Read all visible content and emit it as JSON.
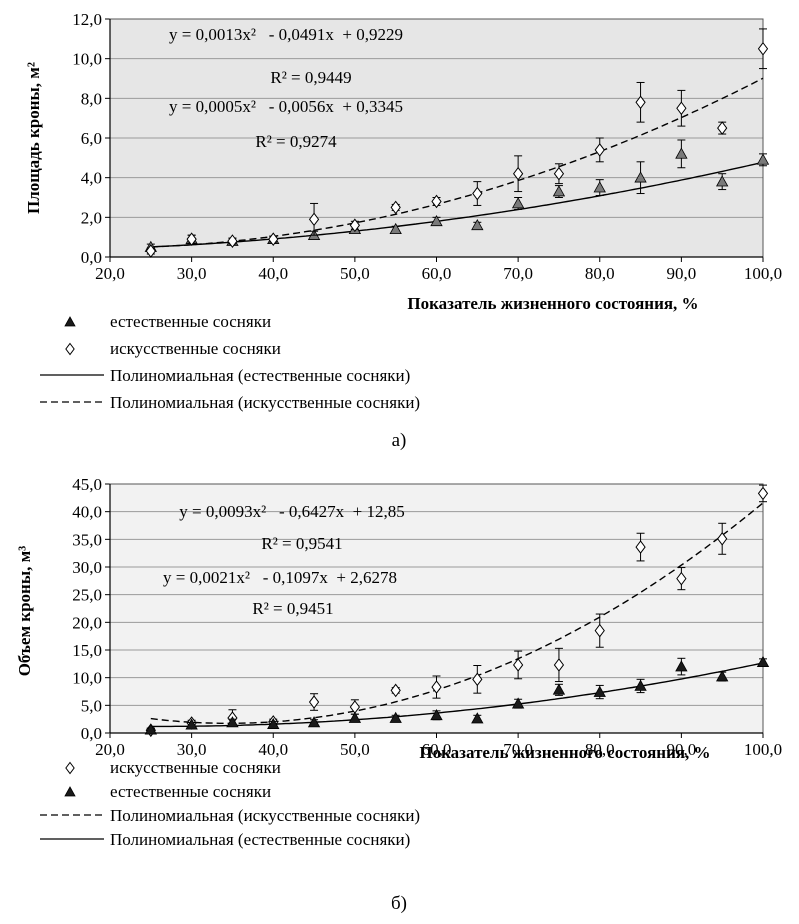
{
  "chart_data": [
    {
      "type": "scatter",
      "panel_label": "а)",
      "xlabel": "Показатель  жизненного  состояния,  %",
      "ylabel": "Площадь  кроны,  м²",
      "xlim": [
        20,
        100
      ],
      "ylim": [
        0,
        12
      ],
      "x_ticks": [
        "20,0",
        "30,0",
        "40,0",
        "50,0",
        "60,0",
        "70,0",
        "80,0",
        "90,0",
        "100,0"
      ],
      "y_ticks": [
        "0,0",
        "2,0",
        "4,0",
        "6,0",
        "8,0",
        "10,0",
        "12,0"
      ],
      "x_tick_values": [
        20,
        30,
        40,
        50,
        60,
        70,
        80,
        90,
        100
      ],
      "y_tick_values": [
        0,
        2,
        4,
        6,
        8,
        10,
        12
      ],
      "grid": "horizontal",
      "background": "#e6e6e6",
      "series": [
        {
          "name": "естественные сосняки",
          "marker": "triangle",
          "fill": "#7a7a7a",
          "x": [
            25,
            30,
            35,
            40,
            45,
            50,
            55,
            60,
            65,
            70,
            75,
            80,
            85,
            90,
            95,
            100
          ],
          "y": [
            0.5,
            0.9,
            0.8,
            0.9,
            1.1,
            1.4,
            1.4,
            1.8,
            1.6,
            2.7,
            3.3,
            3.5,
            4.0,
            5.2,
            3.8,
            4.9
          ],
          "err": [
            0.15,
            0.2,
            0.15,
            0.15,
            0.2,
            0.15,
            0.15,
            0.2,
            0.15,
            0.3,
            0.3,
            0.4,
            0.8,
            0.7,
            0.4,
            0.3
          ]
        },
        {
          "name": "искусственные сосняки",
          "marker": "diamond",
          "fill": "#ffffff",
          "x": [
            25,
            30,
            35,
            40,
            45,
            50,
            55,
            60,
            65,
            70,
            75,
            80,
            85,
            90,
            95,
            100
          ],
          "y": [
            0.3,
            0.9,
            0.8,
            0.9,
            1.9,
            1.6,
            2.5,
            2.8,
            3.2,
            4.2,
            4.2,
            5.4,
            7.8,
            7.5,
            6.5,
            10.5
          ],
          "err": [
            0.15,
            0.2,
            0.15,
            0.15,
            0.8,
            0.2,
            0.15,
            0.2,
            0.6,
            0.9,
            0.5,
            0.6,
            1.0,
            0.9,
            0.3,
            1.0
          ]
        }
      ],
      "trendlines": [
        {
          "name": "Полиномиальная (естественные сосняки)",
          "style": "solid",
          "coeffs": [
            0.0005,
            -0.0056,
            0.3345
          ],
          "equation": "y = 0,0005x²   - 0,0056x  + 0,3345",
          "r2": "R² = 0,9274"
        },
        {
          "name": "Полиномиальная (искусственные сосняки)",
          "style": "dashed",
          "coeffs": [
            0.0013,
            -0.0491,
            0.9229
          ],
          "equation": "y = 0,0013x²   - 0,0491x  + 0,9229",
          "r2": "R² = 0,9449"
        }
      ],
      "legend": [
        {
          "symbol": "triangle",
          "label": "естественные сосняки"
        },
        {
          "symbol": "diamond",
          "label": "искусственные сосняки"
        },
        {
          "symbol": "solid",
          "label": "Полиномиальная (естественные сосняки)"
        },
        {
          "symbol": "dashed",
          "label": "Полиномиальная (искусственные сосняки)"
        }
      ]
    },
    {
      "type": "scatter",
      "panel_label": "б)",
      "xlabel": "Показатель  жизненного  состояния,  %",
      "ylabel": "Объем кроны,  м³",
      "xlim": [
        20,
        100
      ],
      "ylim": [
        0,
        45
      ],
      "x_ticks": [
        "20,0",
        "30,0",
        "40,0",
        "50,0",
        "60,0",
        "70,0",
        "80,0",
        "90,0",
        "100,0"
      ],
      "y_ticks": [
        "0,0",
        "5,0",
        "10,0",
        "15,0",
        "20,0",
        "25,0",
        "30,0",
        "35,0",
        "40,0",
        "45,0"
      ],
      "x_tick_values": [
        20,
        30,
        40,
        50,
        60,
        70,
        80,
        90,
        100
      ],
      "y_tick_values": [
        0,
        5,
        10,
        15,
        20,
        25,
        30,
        35,
        40,
        45
      ],
      "grid": "horizontal",
      "background": "#f2f2f2",
      "series": [
        {
          "name": "искусственные сосняки",
          "marker": "diamond",
          "fill": "#ffffff",
          "x": [
            25,
            30,
            35,
            40,
            45,
            50,
            55,
            60,
            65,
            70,
            75,
            80,
            85,
            90,
            95,
            100
          ],
          "y": [
            0.5,
            1.8,
            2.7,
            2.0,
            5.6,
            4.7,
            7.7,
            8.3,
            9.7,
            12.3,
            12.3,
            18.5,
            33.6,
            27.9,
            35.1,
            43.3
          ],
          "err": [
            0.3,
            0.5,
            1.5,
            0.5,
            1.5,
            1.3,
            0.5,
            2.0,
            2.5,
            2.5,
            3.0,
            3.0,
            2.5,
            2.0,
            2.8,
            1.5
          ]
        },
        {
          "name": "естественные сосняки",
          "marker": "triangle",
          "fill": "#1a1a1a",
          "x": [
            25,
            30,
            35,
            40,
            45,
            50,
            55,
            60,
            65,
            70,
            75,
            80,
            85,
            90,
            95,
            100
          ],
          "y": [
            0.6,
            1.5,
            1.9,
            1.6,
            1.9,
            2.7,
            2.7,
            3.2,
            2.6,
            5.3,
            7.8,
            7.4,
            8.5,
            12.0,
            10.2,
            12.8
          ],
          "err": [
            0.3,
            0.4,
            0.6,
            0.5,
            0.5,
            0.7,
            0.5,
            0.8,
            0.6,
            0.8,
            1.0,
            1.2,
            1.2,
            1.5,
            0.8,
            0.6
          ]
        }
      ],
      "trendlines": [
        {
          "name": "Полиномиальная (искусственные сосняки)",
          "style": "dashed",
          "coeffs": [
            0.0093,
            -0.6427,
            12.85
          ],
          "equation": "y = 0,0093x²   - 0,6427x  + 12,85",
          "r2": "R² = 0,9541"
        },
        {
          "name": "Полиномиальная (естественные сосняки)",
          "style": "solid",
          "coeffs": [
            0.0021,
            -0.1097,
            2.6278
          ],
          "equation": "y = 0,0021x²   - 0,1097x  + 2,6278",
          "r2": "R² = 0,9451"
        }
      ],
      "legend": [
        {
          "symbol": "diamond",
          "label": "искусственные сосняки"
        },
        {
          "symbol": "triangle",
          "label": "естественные сосняки"
        },
        {
          "symbol": "dashed",
          "label": "Полиномиальная (искусственные сосняки)"
        },
        {
          "symbol": "solid",
          "label": "Полиномиальная (естественные сосняки)"
        }
      ]
    }
  ]
}
